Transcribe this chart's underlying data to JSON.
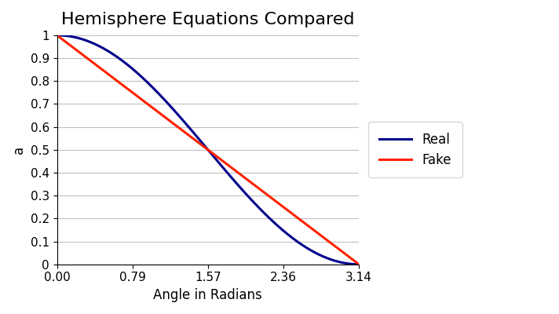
{
  "title": "Hemisphere Equations Compared",
  "xlabel": "Angle in Radians",
  "ylabel": "a",
  "x_ticks": [
    0.0,
    0.785398,
    1.570796,
    2.356194,
    3.141593
  ],
  "x_tick_labels": [
    "0.00",
    "0.79",
    "1.57",
    "2.36",
    "3.14"
  ],
  "ylim": [
    0,
    1
  ],
  "xlim": [
    0,
    3.141593
  ],
  "y_ticks": [
    0,
    0.1,
    0.2,
    0.3,
    0.4,
    0.5,
    0.6,
    0.7,
    0.8,
    0.9,
    1.0
  ],
  "y_tick_labels": [
    "0",
    "0.1",
    "0.2",
    "0.3",
    "0.4",
    "0.5",
    "0.6",
    "0.7",
    "0.8",
    "0.9",
    "1"
  ],
  "line_real_color": "#00008B",
  "line_fake_color": "#FF2200",
  "line_width": 2.2,
  "legend_labels": [
    "Real",
    "Fake"
  ],
  "background_color": "#ffffff",
  "grid_color": "#c0c0c0",
  "title_fontsize": 16,
  "label_fontsize": 12,
  "tick_fontsize": 11
}
